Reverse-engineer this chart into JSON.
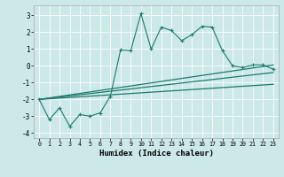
{
  "title": "",
  "xlabel": "Humidex (Indice chaleur)",
  "bg_color": "#cce8e8",
  "grid_color": "#ffffff",
  "line_color": "#1a7a6e",
  "xlim": [
    -0.5,
    23.5
  ],
  "ylim": [
    -4.3,
    3.6
  ],
  "xticks": [
    0,
    1,
    2,
    3,
    4,
    5,
    6,
    7,
    8,
    9,
    10,
    11,
    12,
    13,
    14,
    15,
    16,
    17,
    18,
    19,
    20,
    21,
    22,
    23
  ],
  "yticks": [
    -4,
    -3,
    -2,
    -1,
    0,
    1,
    2,
    3
  ],
  "series1_x": [
    0,
    1,
    2,
    3,
    4,
    5,
    6,
    7,
    8,
    9,
    10,
    11,
    12,
    13,
    14,
    15,
    16,
    17,
    18,
    19,
    20,
    21,
    22,
    23
  ],
  "series1_y": [
    -2.0,
    -3.2,
    -2.5,
    -3.6,
    -2.9,
    -3.0,
    -2.8,
    -1.8,
    0.95,
    0.9,
    3.1,
    1.0,
    2.3,
    2.1,
    1.5,
    1.85,
    2.35,
    2.3,
    0.9,
    0.0,
    -0.1,
    0.05,
    0.05,
    -0.2
  ],
  "series2_x": [
    0,
    23
  ],
  "series2_y": [
    -2.0,
    0.05
  ],
  "series3_x": [
    0,
    23
  ],
  "series3_y": [
    -2.0,
    -0.4
  ],
  "series4_x": [
    0,
    23
  ],
  "series4_y": [
    -2.0,
    -1.1
  ]
}
